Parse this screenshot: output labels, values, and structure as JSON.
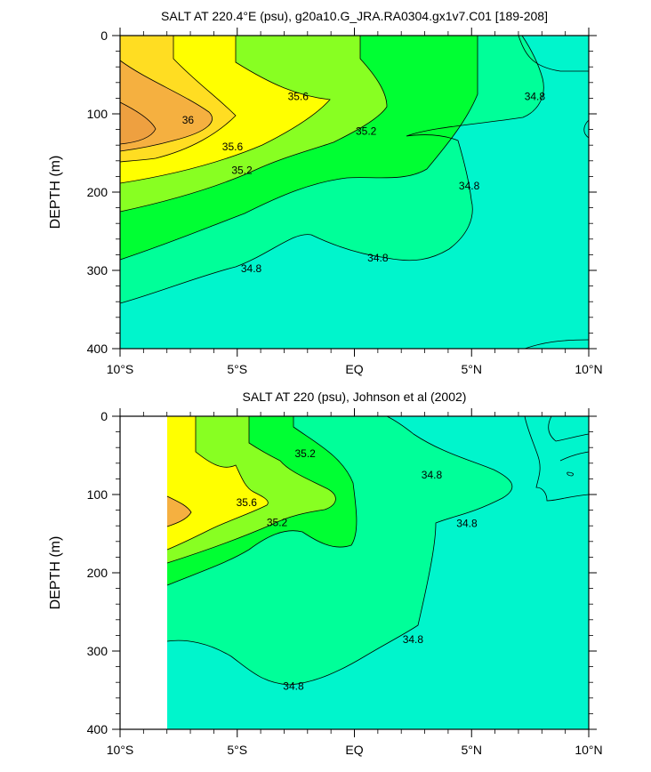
{
  "chart_data": [
    {
      "type": "contour",
      "title": "SALT AT 220.4°E (psu), g20a10.G_JRA.RA0304.gx1v7.C01 [189-208]",
      "ylabel": "DEPTH (m)",
      "xlim": [
        -10,
        10
      ],
      "ylim": [
        0,
        400
      ],
      "y_reversed": true,
      "x_ticks": [
        -10,
        -5,
        0,
        5,
        10
      ],
      "x_tick_labels": [
        "10°S",
        "5°S",
        "EQ",
        "5°N",
        "10°N"
      ],
      "y_ticks": [
        0,
        100,
        200,
        300,
        400
      ],
      "y_tick_labels": [
        "0",
        "100",
        "200",
        "300",
        "400"
      ],
      "data_start_lon": -10,
      "contour_labels": [
        {
          "text": "35.6",
          "lon": -2.4,
          "depth": 78
        },
        {
          "text": "36",
          "lon": -7.1,
          "depth": 108
        },
        {
          "text": "35.6",
          "lon": -5.2,
          "depth": 142
        },
        {
          "text": "35.2",
          "lon": 0.5,
          "depth": 122
        },
        {
          "text": "35.2",
          "lon": -4.8,
          "depth": 172
        },
        {
          "text": "34.8",
          "lon": 7.7,
          "depth": 78
        },
        {
          "text": "34.8",
          "lon": 4.9,
          "depth": 192
        },
        {
          "text": "34.8",
          "lon": -4.4,
          "depth": 298
        },
        {
          "text": "34.8",
          "lon": 1.0,
          "depth": 284
        }
      ]
    },
    {
      "type": "contour",
      "title": "SALT AT 220 (psu), Johnson et al (2002)",
      "ylabel": "DEPTH (m)",
      "xlim": [
        -10,
        10
      ],
      "ylim": [
        0,
        400
      ],
      "y_reversed": true,
      "x_ticks": [
        -10,
        -5,
        0,
        5,
        10
      ],
      "x_tick_labels": [
        "10°S",
        "5°S",
        "EQ",
        "5°N",
        "10°N"
      ],
      "y_ticks": [
        0,
        100,
        200,
        300,
        400
      ],
      "y_tick_labels": [
        "0",
        "100",
        "200",
        "300",
        "400"
      ],
      "data_start_lon": -8,
      "contour_labels": [
        {
          "text": "35.2",
          "lon": -2.1,
          "depth": 48
        },
        {
          "text": "34.8",
          "lon": 3.3,
          "depth": 75
        },
        {
          "text": "35.6",
          "lon": -4.6,
          "depth": 110
        },
        {
          "text": "34.8",
          "lon": 4.8,
          "depth": 137
        },
        {
          "text": "35.2",
          "lon": -3.3,
          "depth": 136
        },
        {
          "text": "34.8",
          "lon": 2.5,
          "depth": 285
        },
        {
          "text": "34.8",
          "lon": -2.6,
          "depth": 345
        }
      ]
    }
  ]
}
